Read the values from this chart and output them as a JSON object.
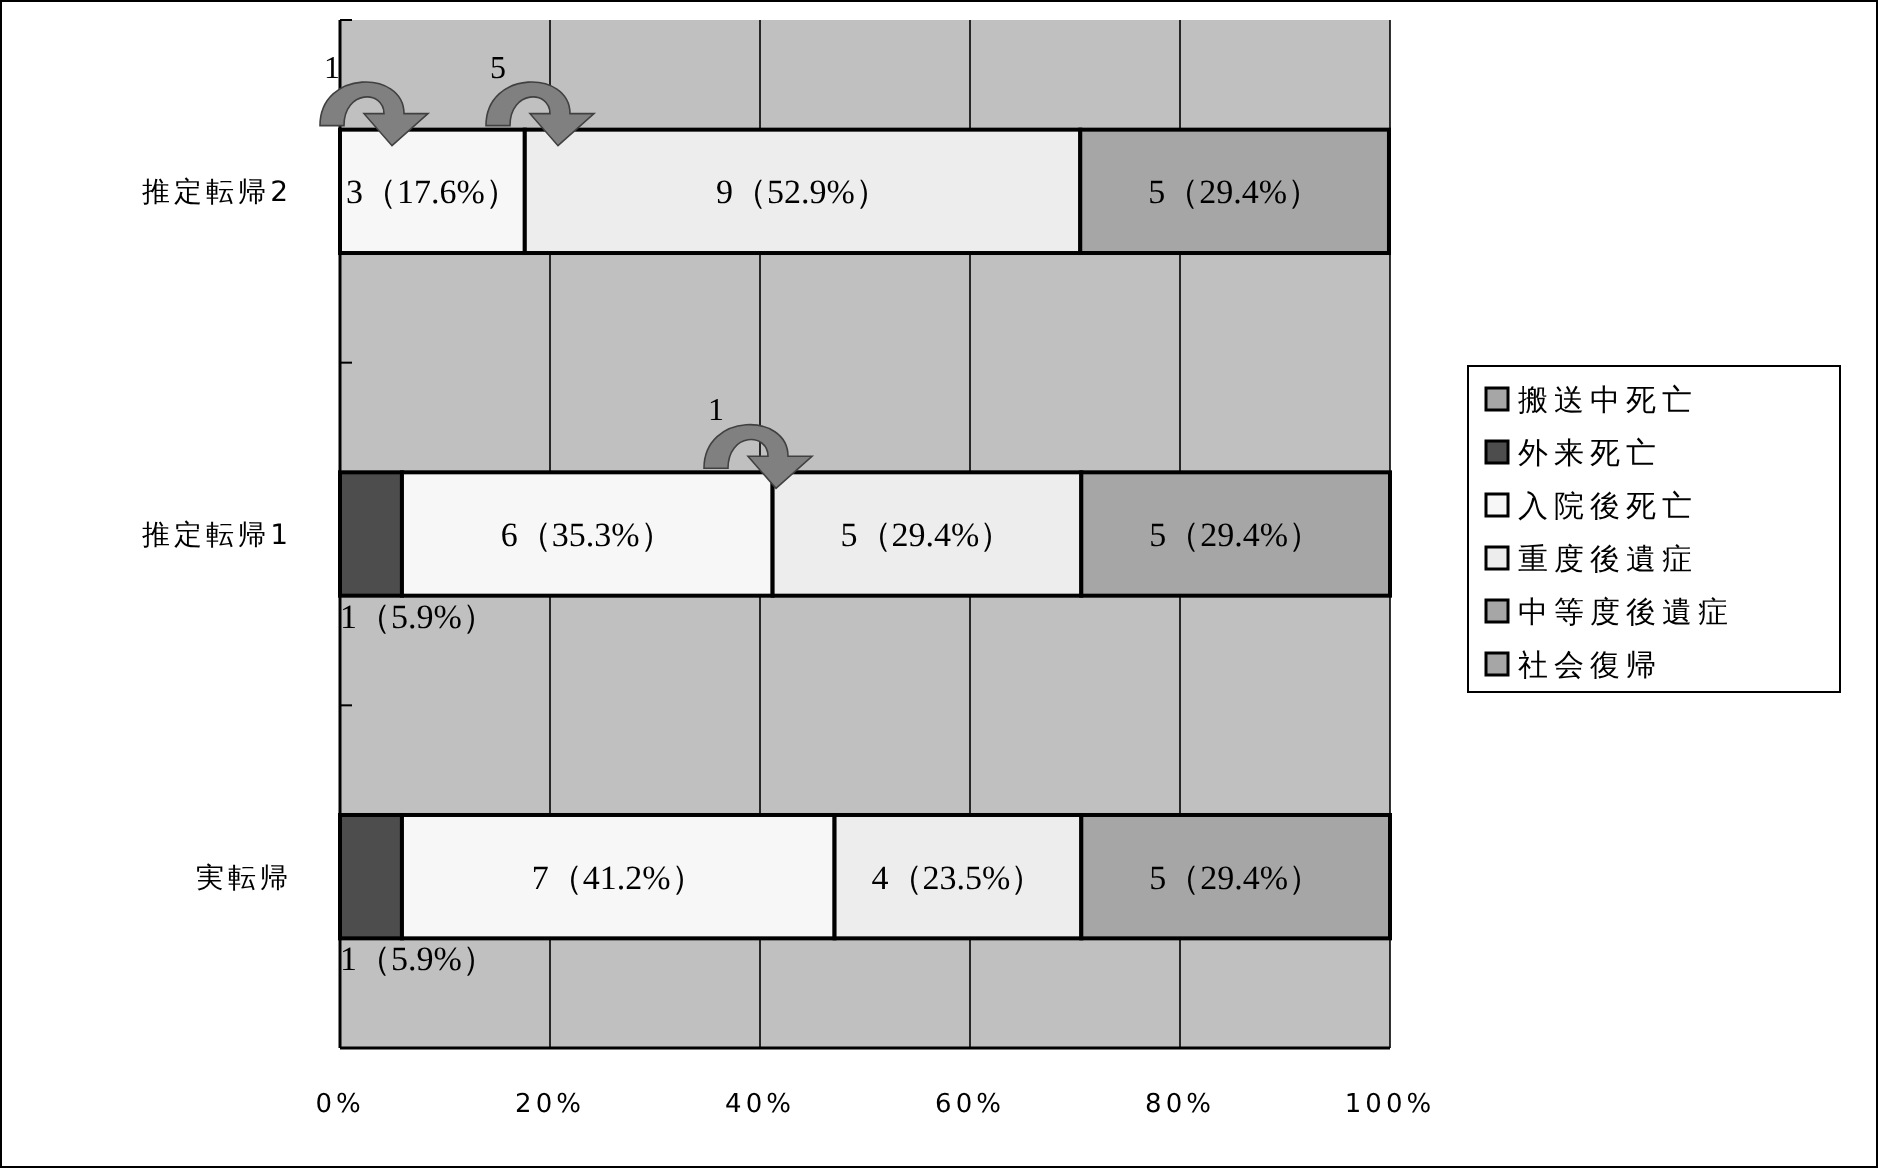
{
  "chart_data": {
    "type": "bar",
    "orientation": "horizontal",
    "stacked": true,
    "categories": [
      "推定転帰2",
      "推定転帰1",
      "実転帰"
    ],
    "series": [
      {
        "name": "搬送中死亡",
        "color": "#a6a6a6",
        "values": [
          null,
          null,
          null
        ],
        "value_labels": [
          null,
          null,
          null
        ]
      },
      {
        "name": "外来死亡",
        "color": "#4d4d4d",
        "values": [
          null,
          5.9,
          5.9
        ],
        "value_labels": [
          null,
          "1（5.9%）",
          "1（5.9%）"
        ]
      },
      {
        "name": "入院後死亡",
        "color": "#f7f7f7",
        "values": [
          17.6,
          35.3,
          41.2
        ],
        "value_labels": [
          "3（17.6%）",
          "6（35.3%）",
          "7（41.2%）"
        ]
      },
      {
        "name": "重度後遺症",
        "color": "#ededed",
        "values": [
          52.9,
          29.4,
          23.5
        ],
        "value_labels": [
          "9（52.9%）",
          "5（29.4%）",
          "4（23.5%）"
        ]
      },
      {
        "name": "中等度後遺症",
        "color": "#a6a6a6",
        "values": [
          null,
          null,
          null
        ],
        "value_labels": [
          null,
          null,
          null
        ]
      },
      {
        "name": "社会復帰",
        "color": "#a6a6a6",
        "values": [
          29.4,
          29.4,
          29.4
        ],
        "value_labels": [
          "5（29.4%）",
          "5（29.4%）",
          "5（29.4%）"
        ]
      }
    ],
    "xlim": [
      0,
      100
    ],
    "xticks": [
      {
        "value": 0,
        "label": "0%"
      },
      {
        "value": 20,
        "label": "20%"
      },
      {
        "value": 40,
        "label": "40%"
      },
      {
        "value": 60,
        "label": "60%"
      },
      {
        "value": 80,
        "label": "80%"
      },
      {
        "value": 100,
        "label": "100%"
      }
    ],
    "grid": "x",
    "legend": "right",
    "annotations": [
      "1",
      "5",
      "1"
    ]
  }
}
